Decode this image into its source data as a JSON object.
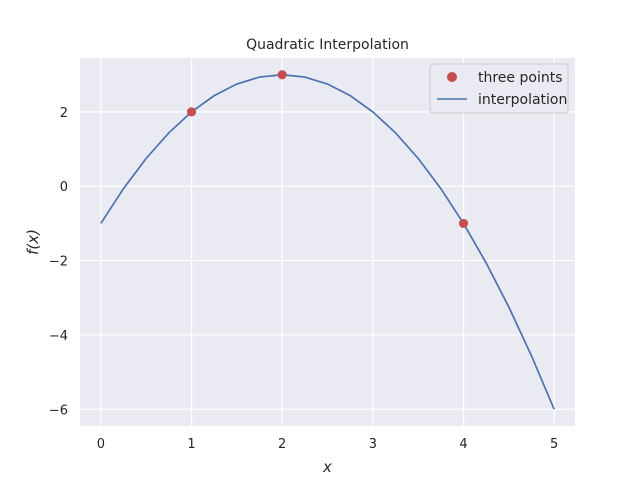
{
  "chart_data": {
    "type": "line",
    "title": "Quadratic Interpolation",
    "xlabel": "x",
    "ylabel": "f(x)",
    "xlim": [
      -0.23,
      5.23
    ],
    "ylim": [
      -6.45,
      3.45
    ],
    "x_ticks": [
      0,
      1,
      2,
      3,
      4,
      5
    ],
    "x_tick_labels": [
      "0",
      "1",
      "2",
      "3",
      "4",
      "5"
    ],
    "y_ticks": [
      -6,
      -4,
      -2,
      0,
      2
    ],
    "y_tick_labels": [
      "−6",
      "−4",
      "−2",
      "0",
      "2"
    ],
    "grid": true,
    "legend_position": "top-right",
    "series": [
      {
        "name": "three points",
        "kind": "scatter",
        "color": "#c44e52",
        "points": [
          {
            "x": 1,
            "y": 2
          },
          {
            "x": 2,
            "y": 3
          },
          {
            "x": 4,
            "y": -1
          }
        ]
      },
      {
        "name": "interpolation",
        "kind": "line",
        "color": "#4c72b0",
        "x": [
          0,
          0.25,
          0.5,
          0.75,
          1,
          1.25,
          1.5,
          1.75,
          2,
          2.25,
          2.5,
          2.75,
          3,
          3.25,
          3.5,
          3.75,
          4,
          4.25,
          4.5,
          4.75,
          5
        ],
        "y": [
          -1,
          -0.0625,
          0.75,
          1.4375,
          2,
          2.4375,
          2.75,
          2.9375,
          3,
          2.9375,
          2.75,
          2.4375,
          2,
          1.4375,
          0.75,
          -0.0625,
          -1,
          -2.0625,
          -3.25,
          -4.5625,
          -6
        ]
      }
    ]
  },
  "colors": {
    "axes_background": "#eaeaf2",
    "grid": "#ffffff"
  }
}
